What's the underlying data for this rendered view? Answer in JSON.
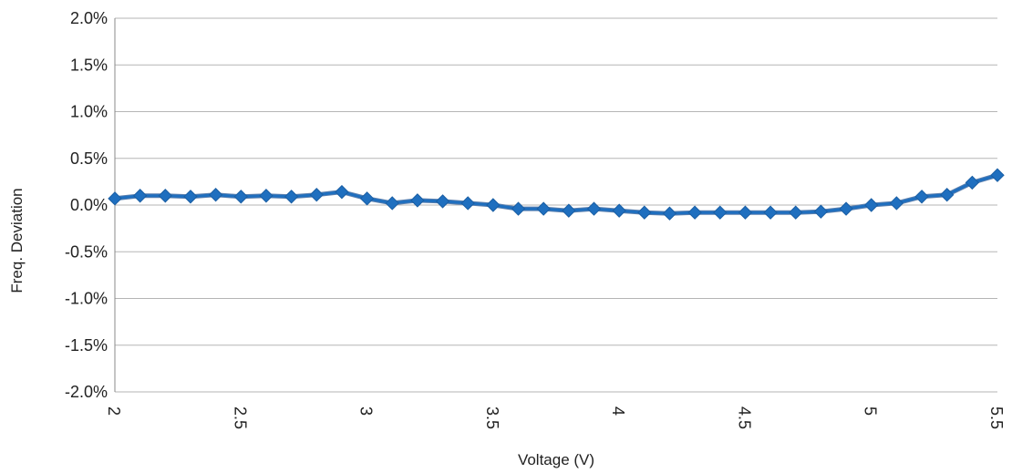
{
  "chart_data": {
    "type": "line",
    "title": "",
    "xlabel": "Voltage (V)",
    "ylabel": "Freq. Deviation",
    "xlim": [
      2,
      5.5
    ],
    "ylim": [
      -2.0,
      2.0
    ],
    "x_ticks": [
      2,
      2.5,
      3,
      3.5,
      4,
      4.5,
      5,
      5.5
    ],
    "x_tick_labels": [
      "2",
      "2.5",
      "3",
      "3.5",
      "4",
      "4.5",
      "5",
      "5.5"
    ],
    "y_ticks": [
      -2.0,
      -1.5,
      -1.0,
      -0.5,
      0.0,
      0.5,
      1.0,
      1.5,
      2.0
    ],
    "y_tick_labels": [
      "-2.0%",
      "-1.5%",
      "-1.0%",
      "-0.5%",
      "0.0%",
      "0.5%",
      "1.0%",
      "1.5%",
      "2.0%"
    ],
    "grid": "horizontal",
    "legend": "none",
    "series": [
      {
        "color": "#1f6fbf",
        "marker": "diamond",
        "x": [
          2.0,
          2.1,
          2.2,
          2.3,
          2.4,
          2.5,
          2.6,
          2.7,
          2.8,
          2.9,
          3.0,
          3.1,
          3.2,
          3.3,
          3.4,
          3.5,
          3.6,
          3.7,
          3.8,
          3.9,
          4.0,
          4.1,
          4.2,
          4.3,
          4.4,
          4.5,
          4.6,
          4.7,
          4.8,
          4.9,
          5.0,
          5.1,
          5.2,
          5.3,
          5.4,
          5.5
        ],
        "values": [
          0.07,
          0.1,
          0.1,
          0.09,
          0.11,
          0.09,
          0.1,
          0.09,
          0.11,
          0.14,
          0.07,
          0.02,
          0.05,
          0.04,
          0.02,
          0.0,
          -0.04,
          -0.04,
          -0.06,
          -0.04,
          -0.06,
          -0.08,
          -0.09,
          -0.08,
          -0.08,
          -0.08,
          -0.08,
          -0.08,
          -0.07,
          -0.04,
          0.0,
          0.02,
          0.09,
          0.11,
          0.24,
          0.32
        ]
      }
    ]
  }
}
